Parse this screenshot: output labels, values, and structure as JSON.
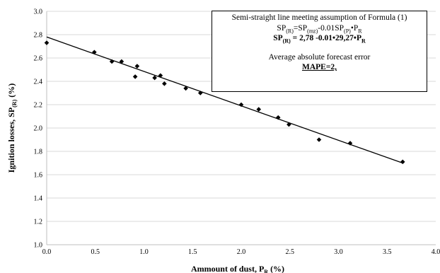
{
  "chart_data": {
    "type": "scatter",
    "xlabel": "Ammount of dust, P",
    "xlabel_sub": "R",
    "xlabel_unit": " (%)",
    "ylabel": "Ignition losses, SP",
    "ylabel_sub": "(R)",
    "ylabel_unit": " (%)",
    "xlim": [
      0.0,
      4.0
    ],
    "ylim": [
      1.0,
      3.0
    ],
    "x_ticks": [
      "0.0",
      "0.5",
      "1.0",
      "1.5",
      "2.0",
      "2.5",
      "3.0",
      "3.5",
      "4.0"
    ],
    "y_ticks": [
      "1.0",
      "1.2",
      "1.4",
      "1.6",
      "1.8",
      "2.0",
      "2.2",
      "2.4",
      "2.6",
      "2.8",
      "3.0"
    ],
    "grid": "horizontal",
    "points": [
      {
        "x": 0.0,
        "y": 2.73
      },
      {
        "x": 0.49,
        "y": 2.65
      },
      {
        "x": 0.67,
        "y": 2.57
      },
      {
        "x": 0.77,
        "y": 2.57
      },
      {
        "x": 0.91,
        "y": 2.44
      },
      {
        "x": 0.93,
        "y": 2.53
      },
      {
        "x": 1.11,
        "y": 2.43
      },
      {
        "x": 1.17,
        "y": 2.45
      },
      {
        "x": 1.21,
        "y": 2.38
      },
      {
        "x": 1.43,
        "y": 2.34
      },
      {
        "x": 1.58,
        "y": 2.3
      },
      {
        "x": 2.0,
        "y": 2.2
      },
      {
        "x": 2.18,
        "y": 2.16
      },
      {
        "x": 2.38,
        "y": 2.09
      },
      {
        "x": 2.49,
        "y": 2.03
      },
      {
        "x": 2.8,
        "y": 1.9
      },
      {
        "x": 3.12,
        "y": 1.87
      },
      {
        "x": 3.66,
        "y": 1.71
      }
    ],
    "trendline": {
      "x1": 0.0,
      "y1": 2.78,
      "x2": 3.66,
      "y2": 1.7
    },
    "marker_color": "#000000",
    "line_color": "#000000",
    "grid_color": "#d9d9d9"
  },
  "annotation": {
    "line1": "Semi-straight line meeting assumption of Formula (1)",
    "eq1": {
      "a": "SP",
      "a_sub": "(R)",
      "b": "=SP",
      "b_sub": "(mz)",
      "c": "-0.01SP",
      "c_sub": "(P)",
      "d": "•P",
      "d_sub": "R"
    },
    "eq2": {
      "a": "SP",
      "a_sub": "(R)",
      "b": " = 2,78 -0.01•29,27•P",
      "b_sub": "R"
    },
    "line4": "Average absolute forecast error",
    "line5": "MAPE=2,"
  }
}
